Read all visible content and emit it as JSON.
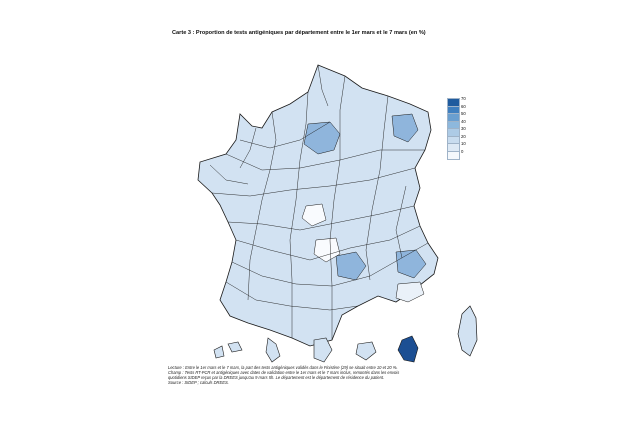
{
  "title": "Carte 3 : Proportion de tests antigéniques par département entre le 1er mars et le 7 mars (en %)",
  "legend": {
    "labels": [
      "70",
      "60",
      "50",
      "40",
      "30",
      "20",
      "10",
      "0"
    ],
    "colors": [
      "#1f5b9e",
      "#3f7fbf",
      "#6a9fd0",
      "#8db8dd",
      "#adcbe6",
      "#c8dcef",
      "#dde9f5",
      "#f4f8fc"
    ]
  },
  "notes": {
    "line1": "Lecture : Entre le 1er mars et le 7 mars, la part des tests antigéniques validés dans le Finistère (29) se situait entre 10 et 20 %.",
    "line2": "Champ : Tests RT-PCR et antigéniques avec dates de validation entre le 1er mars et le 7 mars inclus, remontés dans les envois",
    "line3": "quotidiens SIDEP reçus par la DREES jusqu'au 9 mars 5h. Le département est le département de résidence du patient.",
    "line4": "Source : SIDEP ; calculs DREES."
  },
  "map_colors": {
    "mainland_fill": "#d2e2f2",
    "dark_zone": "#8fb5dc",
    "light_zone": "#eaf1f9",
    "white_zone": "#f9fbfe",
    "mayotte": "#1c4f93",
    "outline": "#1a1a1a"
  }
}
